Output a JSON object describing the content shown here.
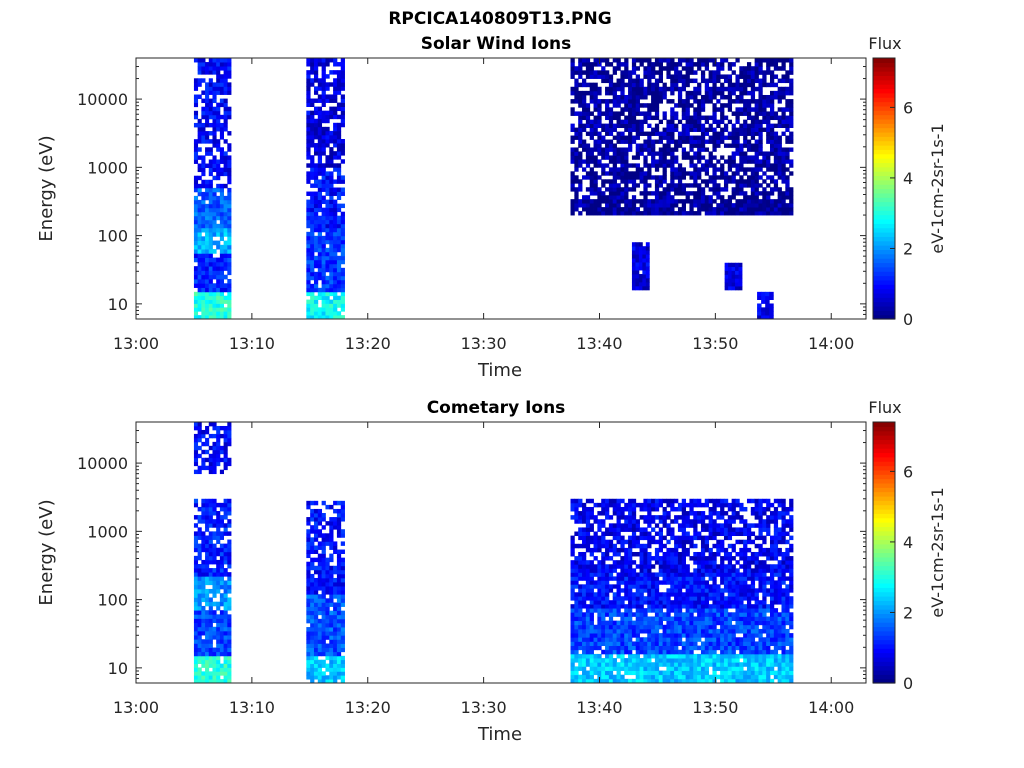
{
  "figure": {
    "filename": "RPCICA140809T13.PNG"
  },
  "chart_data": [
    {
      "type": "heatmap",
      "title": "Solar Wind Ions",
      "xlabel": "Time",
      "ylabel": "Energy (eV)",
      "x_tick_labels": [
        "13:00",
        "13:10",
        "13:20",
        "13:30",
        "13:40",
        "13:50",
        "14:00"
      ],
      "x_range_minutes": [
        0,
        63
      ],
      "y_tick_labels": [
        "10",
        "100",
        "1000",
        "10000"
      ],
      "y_tick_values": [
        10,
        100,
        1000,
        10000
      ],
      "y_scale": "log",
      "y_range": [
        6,
        40000
      ],
      "colorbar": {
        "title": "Flux",
        "label": "eV-1cm-2sr-1s-1",
        "ticks": [
          "0",
          "2",
          "4",
          "6"
        ],
        "tick_values": [
          0,
          2,
          4,
          6
        ],
        "range": [
          0,
          7.4
        ],
        "colormap": "jet"
      },
      "data_intervals_minutes": [
        [
          5.0,
          8.2
        ],
        [
          14.7,
          18.0
        ],
        [
          37.5,
          56.7
        ]
      ],
      "blocks": [
        {
          "t": [
            5.0,
            8.2
          ],
          "e": [
            6,
            15
          ],
          "flux": 3.0
        },
        {
          "t": [
            5.0,
            8.2
          ],
          "e": [
            15,
            55
          ],
          "flux": 1.2
        },
        {
          "t": [
            5.0,
            8.2
          ],
          "e": [
            55,
            130
          ],
          "flux": 2.2
        },
        {
          "t": [
            5.0,
            8.2
          ],
          "e": [
            130,
            500
          ],
          "flux": 1.6
        },
        {
          "t": [
            5.0,
            8.2
          ],
          "e": [
            500,
            40000
          ],
          "flux": 0.9
        },
        {
          "t": [
            14.7,
            18.0
          ],
          "e": [
            6,
            15
          ],
          "flux": 2.8
        },
        {
          "t": [
            14.7,
            18.0
          ],
          "e": [
            15,
            130
          ],
          "flux": 1.3
        },
        {
          "t": [
            14.7,
            18.0
          ],
          "e": [
            130,
            1000
          ],
          "flux": 1.0
        },
        {
          "t": [
            14.7,
            18.0
          ],
          "e": [
            1000,
            40000
          ],
          "flux": 0.7
        },
        {
          "t": [
            37.5,
            56.7
          ],
          "e": [
            5000,
            40000
          ],
          "flux": 0.2
        },
        {
          "t": [
            37.5,
            56.7
          ],
          "e": [
            1000,
            5000
          ],
          "flux": 0.25
        },
        {
          "t": [
            37.5,
            56.7
          ],
          "e": [
            200,
            1000
          ],
          "flux": 0.2
        },
        {
          "t": [
            42.8,
            44.3
          ],
          "e": [
            16,
            80
          ],
          "flux": 0.7
        },
        {
          "t": [
            50.8,
            52.3
          ],
          "e": [
            16,
            40
          ],
          "flux": 0.7
        },
        {
          "t": [
            53.6,
            55.0
          ],
          "e": [
            6,
            15
          ],
          "flux": 0.8
        }
      ]
    },
    {
      "type": "heatmap",
      "title": "Cometary Ions",
      "xlabel": "Time",
      "ylabel": "Energy (eV)",
      "x_tick_labels": [
        "13:00",
        "13:10",
        "13:20",
        "13:30",
        "13:40",
        "13:50",
        "14:00"
      ],
      "x_range_minutes": [
        0,
        63
      ],
      "y_tick_labels": [
        "10",
        "100",
        "1000",
        "10000"
      ],
      "y_tick_values": [
        10,
        100,
        1000,
        10000
      ],
      "y_scale": "log",
      "y_range": [
        6,
        40000
      ],
      "colorbar": {
        "title": "Flux",
        "label": "eV-1cm-2sr-1s-1",
        "ticks": [
          "0",
          "2",
          "4",
          "6"
        ],
        "tick_values": [
          0,
          2,
          4,
          6
        ],
        "range": [
          0,
          7.4
        ],
        "colormap": "jet"
      },
      "data_intervals_minutes": [
        [
          5.0,
          8.2
        ],
        [
          14.7,
          18.0
        ],
        [
          37.5,
          56.7
        ]
      ],
      "blocks": [
        {
          "t": [
            5.0,
            8.2
          ],
          "e": [
            6,
            15
          ],
          "flux": 3.0
        },
        {
          "t": [
            5.0,
            8.2
          ],
          "e": [
            15,
            70
          ],
          "flux": 1.4
        },
        {
          "t": [
            5.0,
            8.2
          ],
          "e": [
            70,
            220
          ],
          "flux": 2.0
        },
        {
          "t": [
            5.0,
            8.2
          ],
          "e": [
            220,
            3000
          ],
          "flux": 1.1
        },
        {
          "t": [
            5.0,
            8.2
          ],
          "e": [
            7000,
            40000
          ],
          "flux": 0.9
        },
        {
          "t": [
            14.7,
            18.0
          ],
          "e": [
            6,
            15
          ],
          "flux": 2.4
        },
        {
          "t": [
            14.7,
            18.0
          ],
          "e": [
            15,
            120
          ],
          "flux": 1.5
        },
        {
          "t": [
            14.7,
            18.0
          ],
          "e": [
            120,
            2800
          ],
          "flux": 1.0
        },
        {
          "t": [
            37.5,
            56.7
          ],
          "e": [
            6,
            16
          ],
          "flux": 2.4
        },
        {
          "t": [
            37.5,
            56.7
          ],
          "e": [
            16,
            75
          ],
          "flux": 1.4
        },
        {
          "t": [
            37.5,
            56.7
          ],
          "e": [
            75,
            250
          ],
          "flux": 1.0
        },
        {
          "t": [
            37.5,
            56.7
          ],
          "e": [
            250,
            3000
          ],
          "flux": 0.8
        }
      ]
    }
  ]
}
